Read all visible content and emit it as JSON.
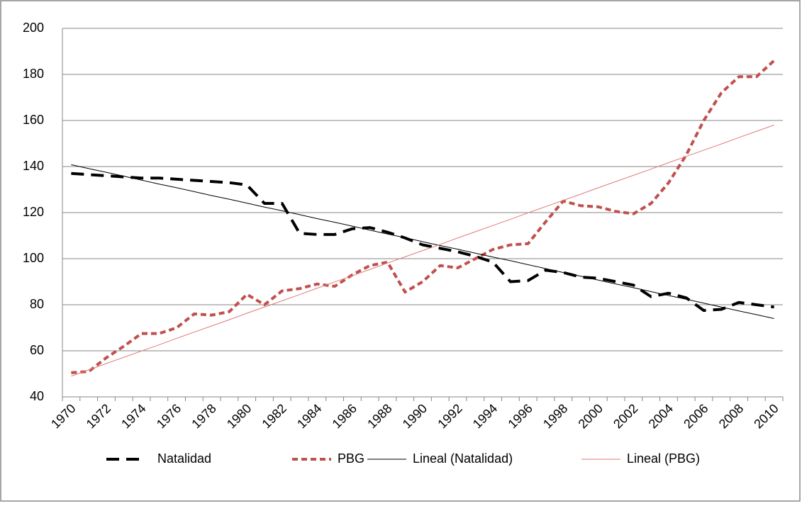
{
  "chart_data": {
    "type": "line",
    "categories": [
      "1970",
      null,
      "1972",
      null,
      "1974",
      null,
      "1976",
      null,
      "1978",
      null,
      "1980",
      null,
      "1982",
      null,
      "1984",
      null,
      "1986",
      null,
      "1988",
      null,
      "1990",
      null,
      "1992",
      null,
      "1994",
      null,
      "1996",
      null,
      "1998",
      null,
      "2000",
      null,
      "2002",
      null,
      "2004",
      null,
      "2006",
      null,
      "2008",
      null,
      "2010"
    ],
    "series": [
      {
        "name": "Natalidad",
        "color": "#000000",
        "dash": "long",
        "width": 4,
        "values": [
          137,
          136.5,
          136,
          135.5,
          135,
          135,
          134.5,
          134,
          133.5,
          133,
          132,
          124,
          124,
          111,
          110.5,
          110.5,
          113,
          113.5,
          111.5,
          109,
          106,
          104.5,
          103,
          101,
          98.5,
          90,
          90.5,
          95,
          94,
          92,
          91.5,
          90,
          88.5,
          83.5,
          85,
          83,
          77.5,
          78,
          81,
          80,
          79
        ]
      },
      {
        "name": "PBG",
        "color": "#c0504d",
        "dash": "short",
        "width": 4,
        "values": [
          50.5,
          51,
          57,
          62,
          67.5,
          67.5,
          70,
          76,
          75.5,
          77,
          84.5,
          80,
          86,
          87,
          89,
          88,
          93,
          97,
          98.5,
          85.5,
          90,
          97,
          96,
          100,
          104,
          106,
          106.5,
          116,
          125,
          123,
          122.5,
          120.5,
          119.5,
          124,
          133,
          145,
          160,
          172,
          179,
          179,
          186
        ]
      },
      {
        "name": "Lineal (Natalidad)",
        "color": "#000000",
        "dash": "solid",
        "width": 1,
        "values": [
          140.8,
          139.1,
          137.5,
          135.8,
          134.1,
          132.4,
          130.8,
          129.1,
          127.4,
          125.8,
          124.1,
          122.4,
          120.8,
          119.1,
          117.4,
          115.8,
          114.1,
          112.4,
          110.7,
          109.1,
          107.4,
          105.7,
          104.1,
          102.4,
          100.7,
          99.1,
          97.4,
          95.7,
          94.0,
          92.4,
          90.7,
          89.0,
          87.4,
          85.7,
          84.0,
          82.4,
          80.7,
          79.0,
          77.3,
          75.7,
          74.0
        ]
      },
      {
        "name": "Lineal (PBG)",
        "color": "#e07a78",
        "dash": "solid",
        "width": 1,
        "values": [
          49.0,
          51.7,
          54.5,
          57.2,
          59.9,
          62.6,
          65.4,
          68.1,
          70.8,
          73.5,
          76.3,
          79.0,
          81.7,
          84.4,
          87.2,
          89.9,
          92.6,
          95.3,
          98.1,
          100.8,
          103.5,
          106.2,
          109.0,
          111.7,
          114.4,
          117.1,
          119.9,
          122.6,
          125.3,
          128.0,
          130.8,
          133.5,
          136.2,
          138.9,
          141.7,
          144.4,
          147.1,
          149.8,
          152.6,
          155.3,
          158.0
        ]
      }
    ],
    "ylim": [
      40,
      200
    ],
    "yticks": [
      40,
      60,
      80,
      100,
      120,
      140,
      160,
      180,
      200
    ],
    "grid": true,
    "legend": "bottom"
  }
}
